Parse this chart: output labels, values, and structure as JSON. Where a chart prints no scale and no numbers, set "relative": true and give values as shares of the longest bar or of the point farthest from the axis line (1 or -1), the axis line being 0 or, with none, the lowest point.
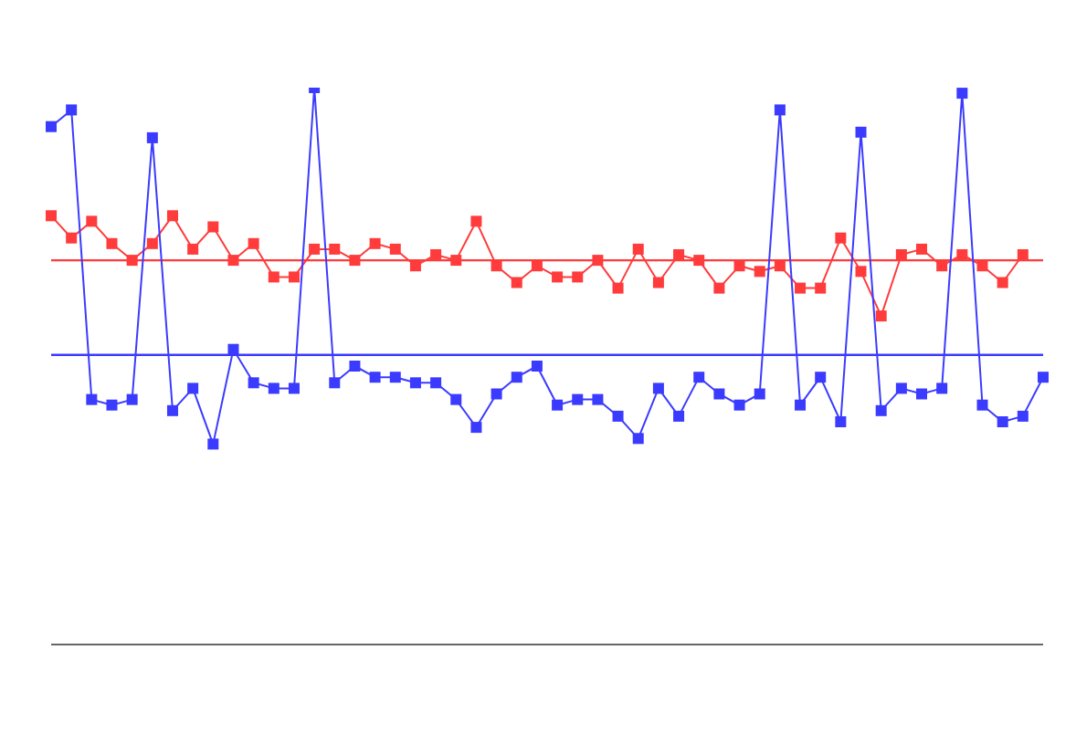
{
  "chart_data": {
    "type": "line",
    "relative": true,
    "marker": "square",
    "line_style": "solid",
    "categories": [
      null,
      null,
      null,
      null,
      null,
      null,
      null,
      null,
      null,
      null,
      null,
      null,
      null,
      null,
      null,
      null,
      null,
      null,
      null,
      null,
      null,
      null,
      null,
      null,
      null,
      null,
      null,
      null,
      null,
      null,
      null,
      null,
      null,
      null,
      null,
      null,
      null,
      null,
      null,
      null,
      null,
      null,
      null,
      null,
      null,
      null,
      null,
      null,
      null,
      null
    ],
    "series": [
      {
        "color": "#ff3b3b",
        "values": [
          0.77,
          0.73,
          0.76,
          0.72,
          0.69,
          0.72,
          0.77,
          0.71,
          0.75,
          0.69,
          0.72,
          0.66,
          0.66,
          0.71,
          0.71,
          0.69,
          0.72,
          0.71,
          0.68,
          0.7,
          0.69,
          0.76,
          0.68,
          0.65,
          0.68,
          0.66,
          0.66,
          0.69,
          0.64,
          0.71,
          0.65,
          0.7,
          0.69,
          0.64,
          0.68,
          0.67,
          0.68,
          0.64,
          0.64,
          0.73,
          0.67,
          0.59,
          0.7,
          0.71,
          0.68,
          0.7,
          0.68,
          0.65,
          0.7,
          null
        ]
      },
      {
        "color": "#3b3bff",
        "values": [
          0.93,
          0.96,
          0.44,
          0.43,
          0.44,
          0.91,
          0.42,
          0.46,
          0.36,
          0.53,
          0.47,
          0.46,
          0.46,
          1,
          0.47,
          0.5,
          0.48,
          0.48,
          0.47,
          0.47,
          0.44,
          0.39,
          0.45,
          0.48,
          0.5,
          0.43,
          0.44,
          0.44,
          0.41,
          0.37,
          0.46,
          0.41,
          0.48,
          0.45,
          0.43,
          0.45,
          0.96,
          0.43,
          0.48,
          0.4,
          0.92,
          0.42,
          0.46,
          0.45,
          0.46,
          0.99,
          0.43,
          0.4,
          0.41,
          0.48
        ]
      }
    ],
    "ref_lines": [
      {
        "axis": "y",
        "value": 0.69,
        "color": "#ff3b3b"
      },
      {
        "axis": "y",
        "value": 0.52,
        "color": "#3b3bff"
      }
    ]
  }
}
